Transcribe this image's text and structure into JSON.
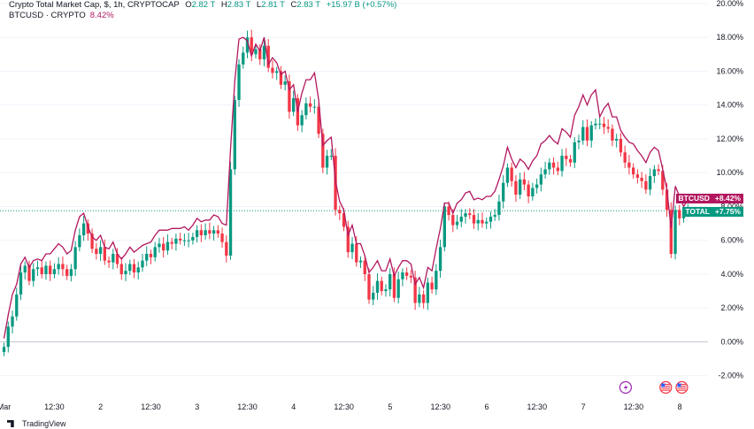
{
  "header": {
    "line1_title": "Crypto Total Market Cap, $, 1h, CRYPTOCAP",
    "o_label": "O",
    "o_value": "2.82 T",
    "h_label": "H",
    "h_value": "2.83 T",
    "l_label": "L",
    "l_value": "2.81 T",
    "c_label": "C",
    "c_value": "2.83 T",
    "change": "+15.97 B (+0.57%)",
    "line2_title": "BTCUSD · CRYPTO",
    "line2_value": "8.42%"
  },
  "badges": {
    "btc_name": "BTCUSD",
    "btc_value": "+8.42%",
    "total_name": "TOTAL",
    "total_value": "+7.75%"
  },
  "branding": {
    "logo_text": "TradingView"
  },
  "icons": [
    "lightning-icon",
    "us-flag-icon",
    "us-flag-icon"
  ],
  "colors": {
    "up": "#089981",
    "down": "#f23645",
    "btc_line": "#b2175f",
    "grid": "#f0f3fa"
  },
  "chart_data": {
    "type": "candlestick",
    "y_unit": "%",
    "ylim": [
      -2.8,
      20.0
    ],
    "y_ticks": [
      "20.00%",
      "18.00%",
      "16.00%",
      "14.00%",
      "12.00%",
      "10.00%",
      "8.00%",
      "6.00%",
      "4.00%",
      "2.00%",
      "0.00%",
      "-2.00%"
    ],
    "y_tick_values": [
      20,
      18,
      16,
      14,
      12,
      10,
      8,
      6,
      4,
      2,
      0,
      -2
    ],
    "x_ticks": [
      "Mar",
      "12:30",
      "2",
      "12:30",
      "3",
      "12:30",
      "4",
      "12:30",
      "5",
      "12:30",
      "6",
      "12:30",
      "7",
      "12:30",
      "8"
    ],
    "x_tick_hours": [
      0,
      12.5,
      24,
      36.5,
      48,
      60.5,
      72,
      84.5,
      96,
      108.5,
      120,
      132.5,
      144,
      156.5,
      168
    ],
    "x_range_hours": [
      -1,
      175
    ],
    "grid": "horizontal",
    "series": [
      {
        "name": "TOTAL",
        "kind": "candles",
        "last": 7.75,
        "close": [
          -0.3,
          0.9,
          1.5,
          2.8,
          4.1,
          4.5,
          3.6,
          4.3,
          4.4,
          4.0,
          4.5,
          4.0,
          4.3,
          4.6,
          4.3,
          3.9,
          4.3,
          5.6,
          6.3,
          7.0,
          6.4,
          5.5,
          5.2,
          5.6,
          4.8,
          4.7,
          5.2,
          4.6,
          4.0,
          4.2,
          4.6,
          4.1,
          4.4,
          4.8,
          5.2,
          5.0,
          5.6,
          5.8,
          5.4,
          5.9,
          5.8,
          6.1,
          6.0,
          6.0,
          6.0,
          6.2,
          6.6,
          6.3,
          6.6,
          6.4,
          6.6,
          6.4,
          5.9,
          5.1,
          10.2,
          14.3,
          16.4,
          17.1,
          18.0,
          17.0,
          17.3,
          16.7,
          17.5,
          16.2,
          15.9,
          16.0,
          15.2,
          15.4,
          13.6,
          14.4,
          12.8,
          13.4,
          14.1,
          13.9,
          13.9,
          12.3,
          10.3,
          11.0,
          11.0,
          7.8,
          7.6,
          6.8,
          5.3,
          5.8,
          4.7,
          4.8,
          4.0,
          2.5,
          2.9,
          3.6,
          3.0,
          3.1,
          4.0,
          2.6,
          3.7,
          4.1,
          3.9,
          3.8,
          2.3,
          2.8,
          2.3,
          3.5,
          3.1,
          4.2,
          5.6,
          8.0,
          7.5,
          6.9,
          7.1,
          7.4,
          7.6,
          7.5,
          7.0,
          7.2,
          7.0,
          7.1,
          7.4,
          7.5,
          8.3,
          9.4,
          10.3,
          9.5,
          8.7,
          9.6,
          9.3,
          8.6,
          9.1,
          9.3,
          9.9,
          10.2,
          10.6,
          10.3,
          10.1,
          11.0,
          10.8,
          10.6,
          11.8,
          11.9,
          12.7,
          11.9,
          12.8,
          12.9,
          12.9,
          12.7,
          12.6,
          11.9,
          12.0,
          11.2,
          10.6,
          10.3,
          9.9,
          9.7,
          9.5,
          9.0,
          9.8,
          10.2,
          10.1,
          9.0,
          7.8,
          5.2,
          7.8,
          7.3,
          7.7,
          7.75
        ]
      },
      {
        "name": "BTCUSD",
        "kind": "line",
        "last": 8.42,
        "values": [
          0.2,
          1.6,
          2.8,
          3.4,
          4.6,
          5.0,
          4.4,
          4.8,
          4.9,
          4.8,
          5.2,
          5.2,
          5.5,
          5.8,
          5.6,
          5.2,
          5.4,
          6.6,
          7.4,
          7.6,
          6.8,
          6.2,
          6.0,
          6.3,
          5.6,
          5.5,
          5.9,
          5.2,
          4.9,
          5.2,
          5.6,
          5.3,
          5.5,
          5.7,
          5.8,
          5.9,
          6.3,
          6.6,
          6.6,
          6.6,
          6.7,
          6.7,
          6.7,
          6.8,
          6.6,
          6.9,
          7.3,
          7.1,
          7.2,
          7.2,
          7.5,
          7.4,
          7.0,
          6.9,
          11.4,
          15.4,
          17.9,
          18.0,
          17.8,
          16.9,
          17.6,
          17.2,
          18.0,
          16.4,
          16.8,
          16.5,
          15.8,
          16.0,
          14.9,
          15.2,
          13.6,
          14.7,
          15.5,
          15.5,
          15.9,
          14.3,
          11.6,
          11.9,
          12.1,
          9.5,
          8.3,
          7.8,
          6.3,
          6.9,
          5.8,
          5.8,
          5.1,
          4.1,
          4.4,
          4.8,
          4.2,
          4.2,
          4.9,
          3.9,
          4.4,
          4.8,
          4.8,
          4.6,
          3.4,
          3.8,
          3.2,
          4.4,
          4.2,
          5.5,
          6.7,
          8.2,
          8.2,
          7.6,
          8.2,
          8.4,
          8.8,
          8.9,
          8.4,
          8.5,
          8.4,
          8.6,
          8.6,
          8.9,
          9.6,
          10.4,
          11.5,
          10.8,
          10.3,
          10.8,
          10.6,
          10.2,
          10.7,
          11.0,
          11.7,
          11.9,
          12.2,
          11.9,
          11.7,
          12.6,
          12.4,
          12.1,
          13.4,
          13.9,
          14.6,
          14.0,
          14.6,
          14.9,
          13.3,
          13.8,
          14.1,
          13.3,
          13.3,
          12.5,
          12.1,
          11.8,
          11.7,
          11.3,
          11.0,
          10.6,
          11.2,
          11.5,
          11.3,
          10.2,
          9.0,
          6.7,
          9.2,
          8.6,
          8.0,
          8.42
        ]
      }
    ]
  }
}
